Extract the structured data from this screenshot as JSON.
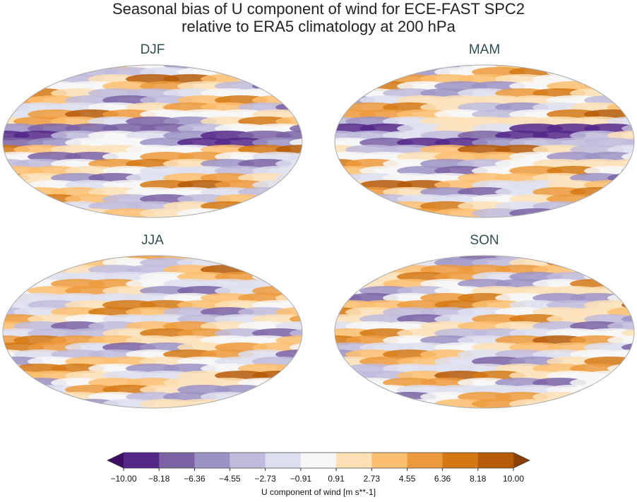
{
  "chart_data": {
    "type": "map",
    "title": "Seasonal bias of U component of wind for ECE-FAST SPC2",
    "subtitle": "relative to ERA5 climatology at 200 hPa",
    "panels": [
      {
        "title": "DJF"
      },
      {
        "title": "MAM"
      },
      {
        "title": "JJA"
      },
      {
        "title": "SON"
      }
    ],
    "colorbar": {
      "label": "U component of wind [m s**-1]",
      "ticks": [
        {
          "value": -10,
          "label": "−10.00"
        },
        {
          "value": -8.18,
          "label": "−8.18"
        },
        {
          "value": -6.36,
          "label": "−6.36"
        },
        {
          "value": -4.55,
          "label": "−4.55"
        },
        {
          "value": -2.73,
          "label": "−2.73"
        },
        {
          "value": -0.91,
          "label": "−0.91"
        },
        {
          "value": 0.91,
          "label": "0.91"
        },
        {
          "value": 2.73,
          "label": "2.73"
        },
        {
          "value": 4.55,
          "label": "4.55"
        },
        {
          "value": 6.36,
          "label": "6.36"
        },
        {
          "value": 8.18,
          "label": "8.18"
        },
        {
          "value": 10,
          "label": "10.00"
        }
      ],
      "colors": [
        "#3d0d63",
        "#542788",
        "#7a62a4",
        "#9c92c4",
        "#c0bbdc",
        "#dedfee",
        "#f7f7f7",
        "#fde0b6",
        "#fdbe6f",
        "#ec9a3c",
        "#d37814",
        "#b55a08",
        "#8a4007"
      ]
    }
  }
}
